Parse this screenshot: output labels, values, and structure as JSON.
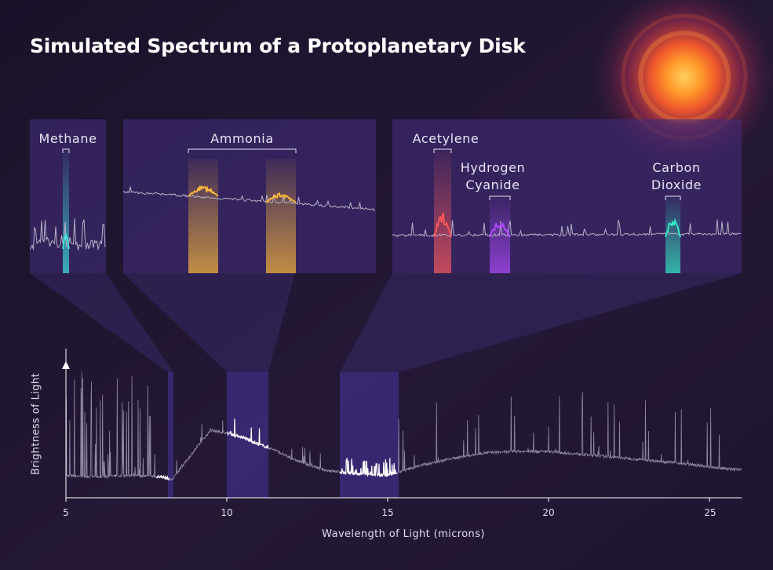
{
  "title": "Simulated Spectrum of a Protoplanetary Disk",
  "colors": {
    "background": "#1e1530",
    "panel": "#402c78",
    "methane": "#3ee6e0",
    "ammonia": "#ffbb3a",
    "acetylene": "#ff5a5a",
    "hydrogen_cyanide": "#b24bff",
    "carbon_dioxide": "#35f0c8",
    "spectrum": "#b8b0c8",
    "disk_glow": "#ff9a2a"
  },
  "chart_data": [
    {
      "type": "line",
      "title": "Simulated Spectrum of a Protoplanetary Disk",
      "xlabel": "Wavelength of Light (microns)",
      "ylabel": "Brightness of Light",
      "xlim": [
        5,
        26
      ],
      "xticks": [
        "5",
        "10",
        "15",
        "20",
        "25"
      ],
      "y_scale": "relative (no numeric ticks)",
      "grid": false,
      "highlighted_ranges": [
        {
          "label": "Methane",
          "x": [
            7.8,
            8.2
          ]
        },
        {
          "label": "Ammonia",
          "x": [
            10.0,
            11.3
          ]
        },
        {
          "label": "Acetylene / Hydrogen Cyanide / Carbon Dioxide",
          "x": [
            13.5,
            15.3
          ]
        }
      ],
      "continuum": {
        "x": [
          5,
          6,
          7,
          8,
          8.3,
          9,
          9.5,
          10,
          10.5,
          11,
          11.5,
          12,
          13,
          14,
          15,
          16,
          17,
          18,
          19,
          20,
          21,
          22,
          23,
          24,
          25,
          26
        ],
        "y": [
          0.08,
          0.07,
          0.08,
          0.07,
          0.05,
          0.26,
          0.4,
          0.38,
          0.35,
          0.3,
          0.26,
          0.2,
          0.12,
          0.09,
          0.08,
          0.15,
          0.2,
          0.24,
          0.25,
          0.25,
          0.23,
          0.21,
          0.19,
          0.17,
          0.14,
          0.12
        ]
      }
    },
    {
      "type": "line",
      "title": "",
      "highlights": [
        {
          "label": "Methane",
          "color": "#3ee6e0"
        }
      ]
    },
    {
      "type": "line",
      "title": "",
      "highlights": [
        {
          "label": "Ammonia",
          "color": "#ffbb3a"
        },
        {
          "label": "",
          "color": "#ffbb3a"
        }
      ]
    },
    {
      "type": "line",
      "title": "",
      "highlights": [
        {
          "label": "Acetylene",
          "color": "#ff5a5a"
        },
        {
          "label": "Hydrogen Cyanide",
          "color": "#b24bff"
        },
        {
          "label": "Carbon Dioxide",
          "color": "#35f0c8"
        }
      ]
    }
  ],
  "labels": {
    "methane": "Methane",
    "ammonia": "Ammonia",
    "acetylene": "Acetylene",
    "hcn_line1": "Hydrogen",
    "hcn_line2": "Cyanide",
    "co2_line1": "Carbon",
    "co2_line2": "Dioxide"
  },
  "axes": {
    "xlabel": "Wavelength of Light (microns)",
    "ylabel": "Brightness of Light",
    "ticks": [
      "5",
      "10",
      "15",
      "20",
      "25"
    ]
  }
}
